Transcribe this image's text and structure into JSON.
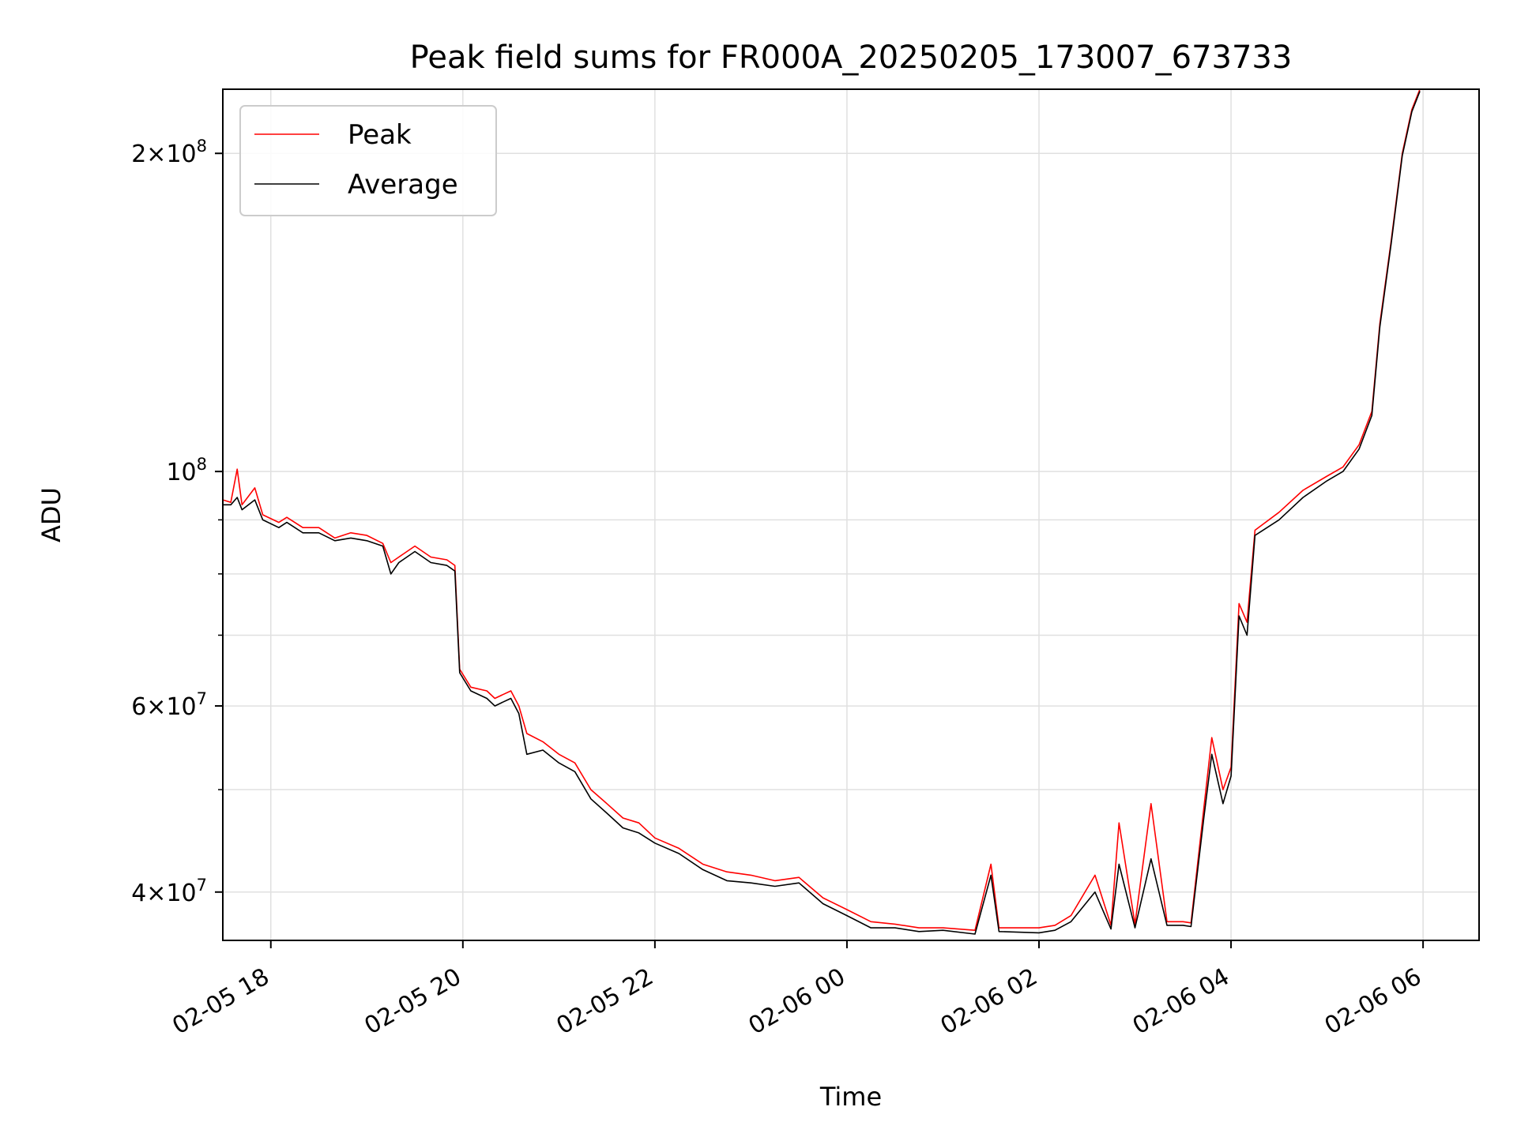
{
  "chart_data": {
    "type": "line",
    "title": "Peak field sums for FR000A_20250205_173007_673733",
    "xlabel": "Time",
    "ylabel": "ADU",
    "yscale": "log",
    "xlim": [
      "2025-02-05 17:30",
      "2025-02-06 06:35"
    ],
    "ylim": [
      36000000,
      230000000
    ],
    "grid": true,
    "legend_position": "top-left",
    "x_ticks": [
      {
        "value": "2025-02-05 18:00",
        "label": "02-05 18"
      },
      {
        "value": "2025-02-05 20:00",
        "label": "02-05 20"
      },
      {
        "value": "2025-02-05 22:00",
        "label": "02-05 22"
      },
      {
        "value": "2025-02-06 00:00",
        "label": "02-06 00"
      },
      {
        "value": "2025-02-06 02:00",
        "label": "02-06 02"
      },
      {
        "value": "2025-02-06 04:00",
        "label": "02-06 04"
      },
      {
        "value": "2025-02-06 06:00",
        "label": "02-06 06"
      }
    ],
    "y_ticks": [
      {
        "value": 40000000,
        "mantissa": "4",
        "exponent": "7"
      },
      {
        "value": 60000000,
        "mantissa": "6",
        "exponent": "7"
      },
      {
        "value": 100000000,
        "mantissa": "",
        "exponent": "8"
      },
      {
        "value": 200000000,
        "mantissa": "2",
        "exponent": "8"
      }
    ],
    "y_minor_ticks": [
      50000000,
      70000000,
      80000000,
      90000000
    ],
    "series": [
      {
        "name": "Peak",
        "color": "#ff0000",
        "points": [
          [
            "2025-02-05 17:30",
            94000000
          ],
          [
            "2025-02-05 17:35",
            93500000
          ],
          [
            "2025-02-05 17:39",
            100500000
          ],
          [
            "2025-02-05 17:42",
            93000000
          ],
          [
            "2025-02-05 17:50",
            96500000
          ],
          [
            "2025-02-05 17:55",
            91000000
          ],
          [
            "2025-02-05 18:05",
            89500000
          ],
          [
            "2025-02-05 18:10",
            90500000
          ],
          [
            "2025-02-05 18:20",
            88500000
          ],
          [
            "2025-02-05 18:30",
            88500000
          ],
          [
            "2025-02-05 18:40",
            86500000
          ],
          [
            "2025-02-05 18:50",
            87500000
          ],
          [
            "2025-02-05 19:00",
            87000000
          ],
          [
            "2025-02-05 19:10",
            85500000
          ],
          [
            "2025-02-05 19:15",
            82000000
          ],
          [
            "2025-02-05 19:20",
            83000000
          ],
          [
            "2025-02-05 19:30",
            85000000
          ],
          [
            "2025-02-05 19:40",
            83000000
          ],
          [
            "2025-02-05 19:50",
            82500000
          ],
          [
            "2025-02-05 19:55",
            81500000
          ],
          [
            "2025-02-05 19:58",
            65000000
          ],
          [
            "2025-02-05 20:05",
            62500000
          ],
          [
            "2025-02-05 20:15",
            62000000
          ],
          [
            "2025-02-05 20:20",
            61000000
          ],
          [
            "2025-02-05 20:25",
            61500000
          ],
          [
            "2025-02-05 20:30",
            62000000
          ],
          [
            "2025-02-05 20:35",
            60000000
          ],
          [
            "2025-02-05 20:40",
            56500000
          ],
          [
            "2025-02-05 20:50",
            55500000
          ],
          [
            "2025-02-05 21:00",
            54000000
          ],
          [
            "2025-02-05 21:10",
            53000000
          ],
          [
            "2025-02-05 21:20",
            50000000
          ],
          [
            "2025-02-05 21:30",
            48500000
          ],
          [
            "2025-02-05 21:40",
            47000000
          ],
          [
            "2025-02-05 21:50",
            46500000
          ],
          [
            "2025-02-05 22:00",
            45000000
          ],
          [
            "2025-02-05 22:15",
            44000000
          ],
          [
            "2025-02-05 22:30",
            42500000
          ],
          [
            "2025-02-05 22:45",
            41800000
          ],
          [
            "2025-02-05 23:00",
            41500000
          ],
          [
            "2025-02-05 23:15",
            41000000
          ],
          [
            "2025-02-05 23:30",
            41300000
          ],
          [
            "2025-02-05 23:45",
            39500000
          ],
          [
            "2025-02-06 00:00",
            38500000
          ],
          [
            "2025-02-06 00:15",
            37500000
          ],
          [
            "2025-02-06 00:30",
            37300000
          ],
          [
            "2025-02-06 00:45",
            37000000
          ],
          [
            "2025-02-06 01:00",
            37000000
          ],
          [
            "2025-02-06 01:20",
            36800000
          ],
          [
            "2025-02-06 01:30",
            42500000
          ],
          [
            "2025-02-06 01:35",
            37000000
          ],
          [
            "2025-02-06 02:00",
            37000000
          ],
          [
            "2025-02-06 02:10",
            37200000
          ],
          [
            "2025-02-06 02:20",
            38000000
          ],
          [
            "2025-02-06 02:35",
            41500000
          ],
          [
            "2025-02-06 02:45",
            37200000
          ],
          [
            "2025-02-06 02:50",
            46500000
          ],
          [
            "2025-02-06 03:00",
            37300000
          ],
          [
            "2025-02-06 03:10",
            48500000
          ],
          [
            "2025-02-06 03:20",
            37500000
          ],
          [
            "2025-02-06 03:30",
            37500000
          ],
          [
            "2025-02-06 03:35",
            37400000
          ],
          [
            "2025-02-06 03:43",
            48000000
          ],
          [
            "2025-02-06 03:48",
            56000000
          ],
          [
            "2025-02-06 03:55",
            50000000
          ],
          [
            "2025-02-06 04:00",
            52500000
          ],
          [
            "2025-02-06 04:05",
            75000000
          ],
          [
            "2025-02-06 04:10",
            72000000
          ],
          [
            "2025-02-06 04:15",
            88000000
          ],
          [
            "2025-02-06 04:30",
            91500000
          ],
          [
            "2025-02-06 04:45",
            96000000
          ],
          [
            "2025-02-06 05:00",
            99000000
          ],
          [
            "2025-02-06 05:10",
            101000000
          ],
          [
            "2025-02-06 05:20",
            106000000
          ],
          [
            "2025-02-06 05:28",
            114000000
          ],
          [
            "2025-02-06 05:33",
            138000000
          ],
          [
            "2025-02-06 05:40",
            165000000
          ],
          [
            "2025-02-06 05:47",
            200000000
          ],
          [
            "2025-02-06 05:53",
            220000000
          ],
          [
            "2025-02-06 05:58",
            230000000
          ]
        ]
      },
      {
        "name": "Average",
        "color": "#000000",
        "points": [
          [
            "2025-02-05 17:30",
            93000000
          ],
          [
            "2025-02-05 17:35",
            93000000
          ],
          [
            "2025-02-05 17:39",
            94500000
          ],
          [
            "2025-02-05 17:42",
            92000000
          ],
          [
            "2025-02-05 17:50",
            94000000
          ],
          [
            "2025-02-05 17:55",
            90000000
          ],
          [
            "2025-02-05 18:05",
            88500000
          ],
          [
            "2025-02-05 18:10",
            89500000
          ],
          [
            "2025-02-05 18:20",
            87500000
          ],
          [
            "2025-02-05 18:30",
            87500000
          ],
          [
            "2025-02-05 18:40",
            86000000
          ],
          [
            "2025-02-05 18:50",
            86500000
          ],
          [
            "2025-02-05 19:00",
            86000000
          ],
          [
            "2025-02-05 19:10",
            85000000
          ],
          [
            "2025-02-05 19:15",
            80000000
          ],
          [
            "2025-02-05 19:20",
            82000000
          ],
          [
            "2025-02-05 19:30",
            84000000
          ],
          [
            "2025-02-05 19:40",
            82000000
          ],
          [
            "2025-02-05 19:50",
            81500000
          ],
          [
            "2025-02-05 19:55",
            80500000
          ],
          [
            "2025-02-05 19:58",
            64500000
          ],
          [
            "2025-02-05 20:05",
            62000000
          ],
          [
            "2025-02-05 20:15",
            61000000
          ],
          [
            "2025-02-05 20:20",
            60000000
          ],
          [
            "2025-02-05 20:25",
            60500000
          ],
          [
            "2025-02-05 20:30",
            61000000
          ],
          [
            "2025-02-05 20:35",
            59000000
          ],
          [
            "2025-02-05 20:40",
            54000000
          ],
          [
            "2025-02-05 20:50",
            54500000
          ],
          [
            "2025-02-05 21:00",
            53000000
          ],
          [
            "2025-02-05 21:10",
            52000000
          ],
          [
            "2025-02-05 21:20",
            49000000
          ],
          [
            "2025-02-05 21:30",
            47500000
          ],
          [
            "2025-02-05 21:40",
            46000000
          ],
          [
            "2025-02-05 21:50",
            45500000
          ],
          [
            "2025-02-05 22:00",
            44500000
          ],
          [
            "2025-02-05 22:15",
            43500000
          ],
          [
            "2025-02-05 22:30",
            42000000
          ],
          [
            "2025-02-05 22:45",
            41000000
          ],
          [
            "2025-02-05 23:00",
            40800000
          ],
          [
            "2025-02-05 23:15",
            40500000
          ],
          [
            "2025-02-05 23:30",
            40800000
          ],
          [
            "2025-02-05 23:45",
            39000000
          ],
          [
            "2025-02-06 00:00",
            38000000
          ],
          [
            "2025-02-06 00:15",
            37000000
          ],
          [
            "2025-02-06 00:30",
            37000000
          ],
          [
            "2025-02-06 00:45",
            36700000
          ],
          [
            "2025-02-06 01:00",
            36800000
          ],
          [
            "2025-02-06 01:20",
            36500000
          ],
          [
            "2025-02-06 01:30",
            41500000
          ],
          [
            "2025-02-06 01:35",
            36700000
          ],
          [
            "2025-02-06 02:00",
            36600000
          ],
          [
            "2025-02-06 02:10",
            36800000
          ],
          [
            "2025-02-06 02:20",
            37500000
          ],
          [
            "2025-02-06 02:35",
            40000000
          ],
          [
            "2025-02-06 02:45",
            36900000
          ],
          [
            "2025-02-06 02:50",
            42500000
          ],
          [
            "2025-02-06 03:00",
            37000000
          ],
          [
            "2025-02-06 03:10",
            43000000
          ],
          [
            "2025-02-06 03:20",
            37200000
          ],
          [
            "2025-02-06 03:30",
            37200000
          ],
          [
            "2025-02-06 03:35",
            37100000
          ],
          [
            "2025-02-06 03:43",
            47000000
          ],
          [
            "2025-02-06 03:48",
            54000000
          ],
          [
            "2025-02-06 03:55",
            48500000
          ],
          [
            "2025-02-06 04:00",
            51500000
          ],
          [
            "2025-02-06 04:05",
            73000000
          ],
          [
            "2025-02-06 04:10",
            70000000
          ],
          [
            "2025-02-06 04:15",
            87000000
          ],
          [
            "2025-02-06 04:30",
            90000000
          ],
          [
            "2025-02-06 04:45",
            94500000
          ],
          [
            "2025-02-06 05:00",
            98000000
          ],
          [
            "2025-02-06 05:10",
            100000000
          ],
          [
            "2025-02-06 05:20",
            105000000
          ],
          [
            "2025-02-06 05:28",
            113000000
          ],
          [
            "2025-02-06 05:33",
            137000000
          ],
          [
            "2025-02-06 05:40",
            164000000
          ],
          [
            "2025-02-06 05:47",
            199000000
          ],
          [
            "2025-02-06 05:53",
            219000000
          ],
          [
            "2025-02-06 05:58",
            229000000
          ]
        ]
      }
    ]
  }
}
